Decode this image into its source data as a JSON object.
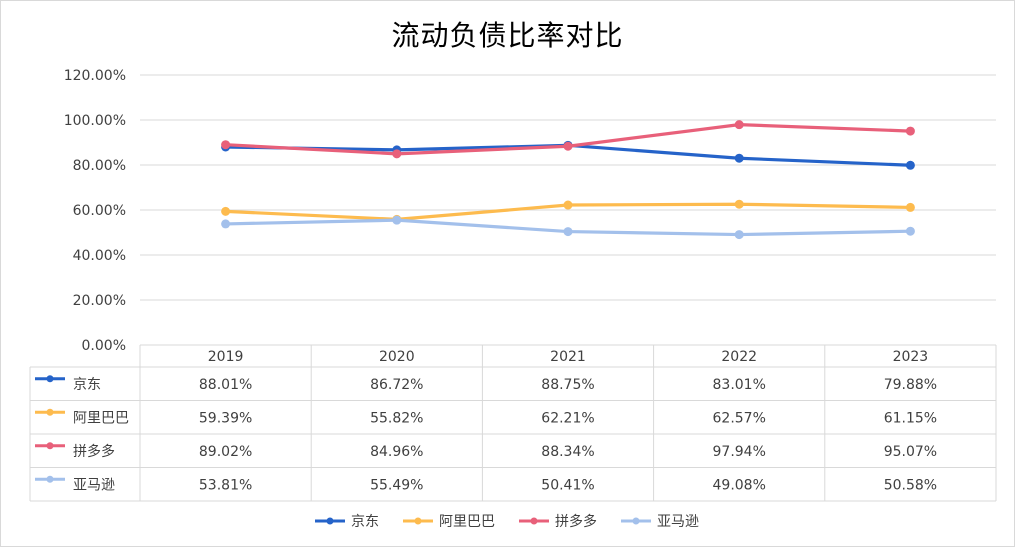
{
  "chart_data": {
    "type": "line",
    "title": "流动负债比率对比",
    "categories": [
      "2019",
      "2020",
      "2021",
      "2022",
      "2023"
    ],
    "ylim": [
      0,
      120
    ],
    "y_ticks": [
      0,
      20,
      40,
      60,
      80,
      100,
      120
    ],
    "y_tick_labels": [
      "0.00%",
      "20.00%",
      "40.00%",
      "60.00%",
      "80.00%",
      "100.00%",
      "120.00%"
    ],
    "grid": true,
    "legend_position": "bottom",
    "data_table": true,
    "series": [
      {
        "name": "京东",
        "color": "#2563c9",
        "values": [
          88.01,
          86.72,
          88.75,
          83.01,
          79.88
        ],
        "labels": [
          "88.01%",
          "86.72%",
          "88.75%",
          "83.01%",
          "79.88%"
        ]
      },
      {
        "name": "阿里巴巴",
        "color": "#fdbb4e",
        "values": [
          59.39,
          55.82,
          62.21,
          62.57,
          61.15
        ],
        "labels": [
          "59.39%",
          "55.82%",
          "62.21%",
          "62.57%",
          "61.15%"
        ]
      },
      {
        "name": "拼多多",
        "color": "#e8607a",
        "values": [
          89.02,
          84.96,
          88.34,
          97.94,
          95.07
        ],
        "labels": [
          "89.02%",
          "84.96%",
          "88.34%",
          "97.94%",
          "95.07%"
        ]
      },
      {
        "name": "亚马逊",
        "color": "#a3c0eb",
        "values": [
          53.81,
          55.49,
          50.41,
          49.08,
          50.58
        ],
        "labels": [
          "53.81%",
          "55.49%",
          "50.41%",
          "49.08%",
          "50.58%"
        ]
      }
    ]
  }
}
